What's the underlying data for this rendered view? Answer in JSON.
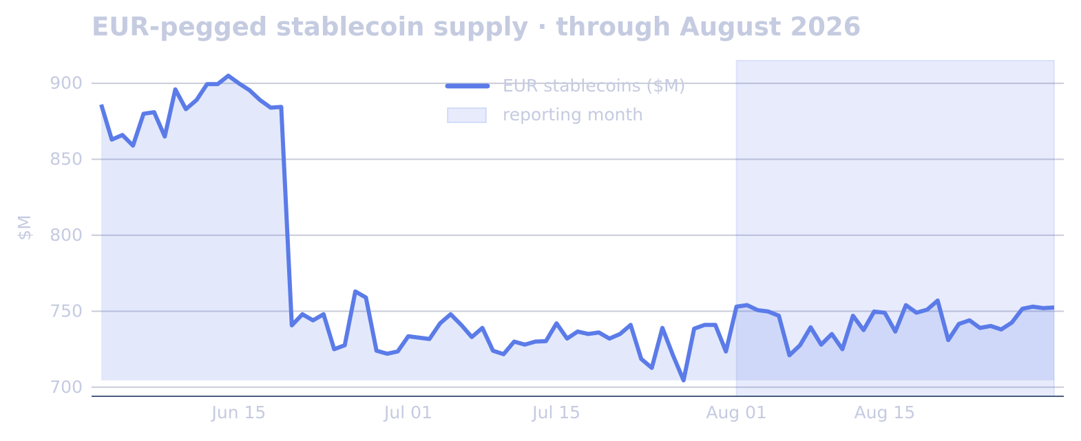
{
  "chart_data": {
    "type": "line",
    "title": "EUR-pegged stablecoin supply · through August 2026",
    "y_label": "$M",
    "x": [
      "Jun 02",
      "Jun 03",
      "Jun 04",
      "Jun 05",
      "Jun 06",
      "Jun 07",
      "Jun 08",
      "Jun 09",
      "Jun 10",
      "Jun 11",
      "Jun 12",
      "Jun 13",
      "Jun 14",
      "Jun 15",
      "Jun 16",
      "Jun 17",
      "Jun 18",
      "Jun 19",
      "Jun 20",
      "Jun 21",
      "Jun 22",
      "Jun 23",
      "Jun 24",
      "Jun 25",
      "Jun 26",
      "Jun 27",
      "Jun 28",
      "Jun 29",
      "Jun 30",
      "Jul 01",
      "Jul 02",
      "Jul 03",
      "Jul 04",
      "Jul 05",
      "Jul 06",
      "Jul 07",
      "Jul 08",
      "Jul 09",
      "Jul 10",
      "Jul 11",
      "Jul 12",
      "Jul 13",
      "Jul 14",
      "Jul 15",
      "Jul 16",
      "Jul 17",
      "Jul 18",
      "Jul 19",
      "Jul 20",
      "Jul 21",
      "Jul 22",
      "Jul 23",
      "Jul 24",
      "Jul 25",
      "Jul 26",
      "Jul 27",
      "Jul 28",
      "Jul 29",
      "Jul 30",
      "Jul 31",
      "Aug 01",
      "Aug 02",
      "Aug 03",
      "Aug 04",
      "Aug 05",
      "Aug 06",
      "Aug 07",
      "Aug 08",
      "Aug 09",
      "Aug 10",
      "Aug 11",
      "Aug 12",
      "Aug 13",
      "Aug 14",
      "Aug 15",
      "Aug 16",
      "Aug 17",
      "Aug 18",
      "Aug 19",
      "Aug 20",
      "Aug 21",
      "Aug 22",
      "Aug 23",
      "Aug 24",
      "Aug 25",
      "Aug 26",
      "Aug 27",
      "Aug 28",
      "Aug 29",
      "Aug 30",
      "Aug 31"
    ],
    "series": [
      {
        "name": "EUR stablecoins ($M)",
        "color": "#5b7be8",
        "values": [
          886,
          863,
          866,
          859,
          880,
          881,
          865,
          896,
          883,
          889,
          899.5,
          899.5,
          905,
          900,
          895.5,
          889,
          884,
          884.5,
          740.7,
          748,
          744,
          748,
          725,
          727.6,
          763,
          759,
          724,
          722,
          723.5,
          733.5,
          732.6,
          731.7,
          742,
          748,
          741,
          733,
          739,
          724,
          721.7,
          730,
          728,
          730,
          730.3,
          742,
          732,
          736.6,
          735,
          736,
          732,
          735,
          741,
          718.6,
          712.7,
          739,
          721,
          704.5,
          738.5,
          741,
          741,
          723.5,
          753,
          754,
          750.7,
          749.8,
          747,
          721,
          727.6,
          739.4,
          728,
          735,
          725,
          747,
          737.6,
          749.8,
          749,
          736.6,
          754,
          749,
          751,
          757,
          731,
          741.6,
          744,
          739,
          740.3,
          738,
          742.5,
          751.6,
          753,
          752,
          752.5
        ]
      }
    ],
    "highlight": {
      "from": "Aug 01",
      "to": "Aug 31",
      "label": "reporting month",
      "color": "#5b7be8"
    },
    "ylim": [
      694,
      915
    ],
    "yticks": [
      700,
      750,
      800,
      850,
      900
    ],
    "xticks": [
      "Jun 15",
      "Jul 01",
      "Jul 15",
      "Aug 01",
      "Aug 15"
    ],
    "grid": true
  }
}
